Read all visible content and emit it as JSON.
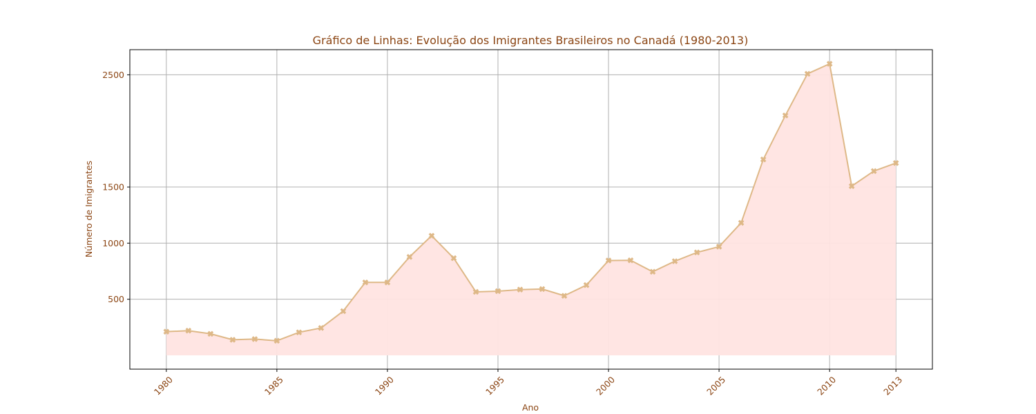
{
  "chart_data": {
    "type": "line",
    "title": "Gráfico de Linhas: Evolução dos Imigrantes Brasileiros no Canadá (1980-2013)",
    "xlabel": "Ano",
    "ylabel": "Número de Imigrantes",
    "x": [
      1980,
      1981,
      1982,
      1983,
      1984,
      1985,
      1986,
      1987,
      1988,
      1989,
      1990,
      1991,
      1992,
      1993,
      1994,
      1995,
      1996,
      1997,
      1998,
      1999,
      2000,
      2001,
      2002,
      2003,
      2004,
      2005,
      2006,
      2007,
      2008,
      2009,
      2010,
      2011,
      2012,
      2013
    ],
    "series": [
      {
        "values": [
          211,
          220,
          192,
          139,
          145,
          130,
          205,
          244,
          394,
          650,
          650,
          877,
          1066,
          866,
          566,
          572,
          586,
          591,
          531,
          626,
          845,
          847,
          745,
          839,
          917,
          969,
          1181,
          1746,
          2138,
          2509,
          2598,
          1508,
          1642,
          1714
        ]
      }
    ],
    "xticks": [
      "1980",
      "1985",
      "1990",
      "1995",
      "2000",
      "2005",
      "2010",
      "2013"
    ],
    "yticks": [
      "500",
      "1000",
      "1500",
      "2500"
    ],
    "xlim": [
      1978.35,
      2014.65
    ],
    "ylim": [
      -123,
      2724
    ],
    "fill_baseline": 0,
    "grid": true,
    "colors": {
      "line": "#deb887",
      "marker": "#deb887",
      "fill": "#ffe4e1",
      "text": "#8b4513",
      "grid": "#b0b0b0"
    }
  }
}
